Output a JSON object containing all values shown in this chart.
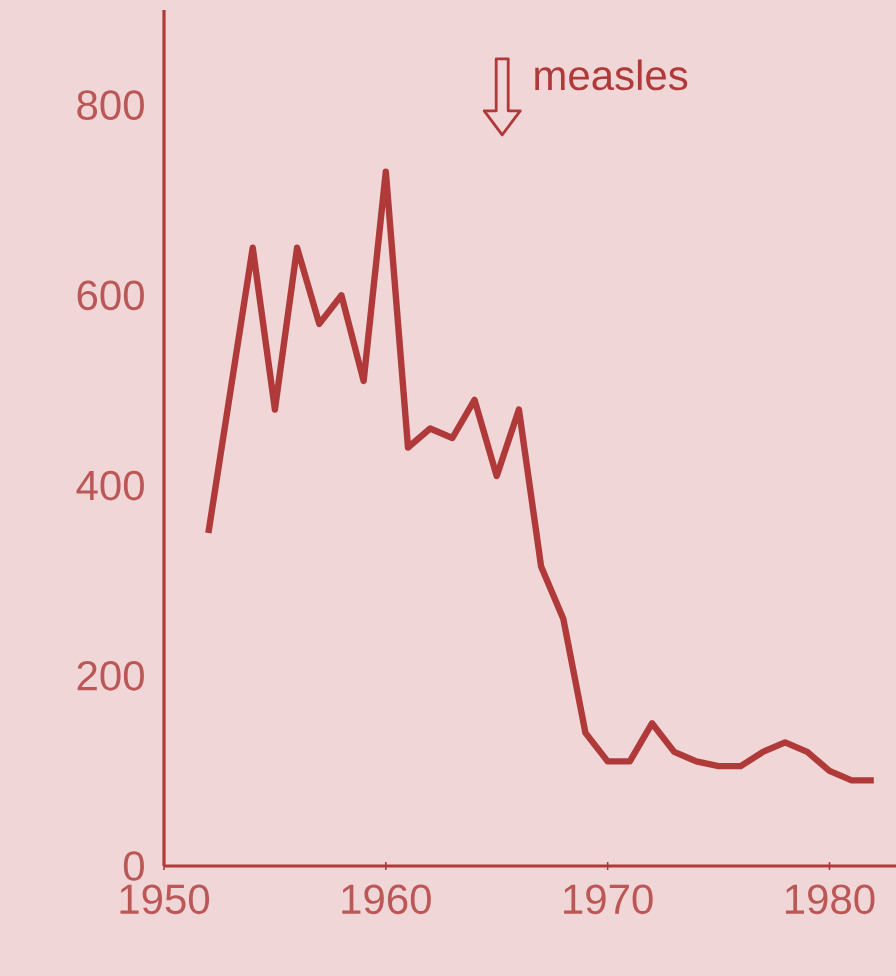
{
  "chart_data": {
    "type": "line",
    "color": "#b03a3a",
    "x": [
      1952,
      1954,
      1955,
      1956,
      1957,
      1958,
      1959,
      1960,
      1961,
      1962,
      1963,
      1964,
      1965,
      1966,
      1967,
      1968,
      1969,
      1970,
      1971,
      1972,
      1973,
      1974,
      1975,
      1976,
      1977,
      1978,
      1979,
      1980,
      1981,
      1982
    ],
    "values": [
      350,
      650,
      480,
      650,
      570,
      600,
      510,
      730,
      440,
      460,
      450,
      490,
      410,
      480,
      315,
      260,
      140,
      110,
      110,
      150,
      120,
      110,
      105,
      105,
      120,
      130,
      120,
      100,
      90,
      90
    ],
    "xlim": [
      1950,
      1983
    ],
    "ylim": [
      0,
      900
    ],
    "xticks": [
      1950,
      1960,
      1970,
      1980
    ],
    "yticks": [
      0,
      200,
      400,
      600,
      800
    ],
    "annotations": [
      "measles"
    ],
    "grid": false,
    "marker": "none",
    "line_style": "solid"
  }
}
